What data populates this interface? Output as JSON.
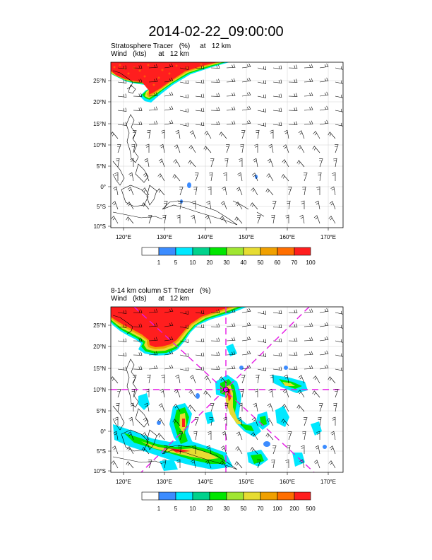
{
  "title": "2014-02-22_09:00:00",
  "panels": [
    {
      "line1": "Stratosphere Tracer   (%)     at   12 km",
      "line2": "Wind   (kts)      at   12 km",
      "lat_labels": [
        "25°N",
        "20°N",
        "15°N",
        "10°N",
        "5°N",
        "0°",
        "5°S",
        "10°S"
      ],
      "lon_labels": [
        "120°E",
        "130°E",
        "140°E",
        "150°E",
        "160°E",
        "170°E"
      ],
      "colorbar_labels": [
        "1",
        "5",
        "10",
        "20",
        "30",
        "40",
        "50",
        "60",
        "70",
        "100"
      ]
    },
    {
      "line1": "8-14 km column ST Tracer   (%)",
      "line2": "Wind   (kts)      at   12 km",
      "lat_labels": [
        "25°N",
        "20°N",
        "15°N",
        "10°N",
        "5°N",
        "0°",
        "5°S",
        "10°S"
      ],
      "lon_labels": [
        "120°E",
        "130°E",
        "140°E",
        "150°E",
        "160°E",
        "170°E"
      ],
      "colorbar_labels": [
        "1",
        "5",
        "10",
        "20",
        "30",
        "50",
        "70",
        "100",
        "200",
        "500"
      ]
    }
  ],
  "colors": {
    "palette": [
      "#ffffff",
      "#3c8cff",
      "#00e8ff",
      "#00d28c",
      "#00e600",
      "#a0e632",
      "#e6dc32",
      "#f0a000",
      "#ff6e00",
      "#ff1e1e"
    ],
    "coast": "#000000",
    "guide_lines": "#e619e6",
    "grid": "#cccccc"
  }
}
